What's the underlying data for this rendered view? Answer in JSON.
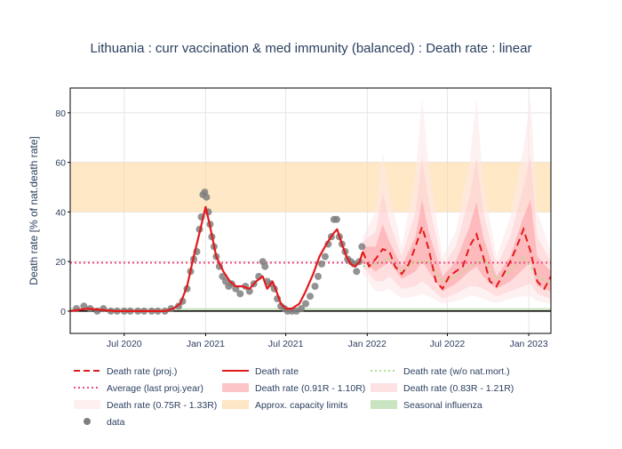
{
  "chart_data": {
    "type": "line",
    "title": "Lithuania : curr vaccination & med immunity (balanced) : Death rate : linear",
    "ylabel": "Death rate [% of nat.death rate]",
    "xlabel": "",
    "xlim": [
      "2020-03-01",
      "2023-02-20"
    ],
    "ylim": [
      -9,
      90
    ],
    "x_ticks": [
      {
        "date": "2020-07-01",
        "label": "Jul 2020"
      },
      {
        "date": "2021-01-01",
        "label": "Jan 2021"
      },
      {
        "date": "2021-07-01",
        "label": "Jul 2021"
      },
      {
        "date": "2022-01-01",
        "label": "Jan 2022"
      },
      {
        "date": "2022-07-01",
        "label": "Jul 2022"
      },
      {
        "date": "2023-01-01",
        "label": "Jan 2023"
      }
    ],
    "y_ticks": [
      0,
      20,
      40,
      60,
      80
    ],
    "grid": true,
    "legend_position": "bottom",
    "capacity_band": [
      40,
      60
    ],
    "average_last_proj_year": 19.5,
    "seasonal_influenza": 0.5,
    "colors": {
      "proj": "#e31a1c",
      "death": "#e31a1c",
      "womort": "#b2df8a",
      "average": "#f1497c",
      "band_inner": "#fc9fa2",
      "band_mid": "#fdcdd0",
      "band_outer": "#fee8ea",
      "capacity": "#fdd9a0",
      "influenza": "#b6d9a9",
      "data": "#7f7f7f",
      "black_line": "#000000"
    },
    "series": [
      {
        "name": "Death rate",
        "dates": [
          "2020-03-01",
          "2020-04-10",
          "2020-05-10",
          "2020-06-10",
          "2020-07-10",
          "2020-08-10",
          "2020-09-10",
          "2020-10-01",
          "2020-10-20",
          "2020-11-05",
          "2020-11-20",
          "2020-12-05",
          "2020-12-20",
          "2021-01-01",
          "2021-01-10",
          "2021-01-25",
          "2021-02-10",
          "2021-02-25",
          "2021-03-10",
          "2021-03-25",
          "2021-04-10",
          "2021-04-25",
          "2021-05-10",
          "2021-05-20",
          "2021-06-01",
          "2021-06-10",
          "2021-06-20",
          "2021-07-01",
          "2021-07-15",
          "2021-08-01",
          "2021-08-15",
          "2021-09-01",
          "2021-09-15",
          "2021-10-01",
          "2021-10-15",
          "2021-10-25",
          "2021-11-05",
          "2021-11-15",
          "2021-11-25",
          "2021-12-05",
          "2021-12-15",
          "2021-12-22"
        ],
        "values": [
          0,
          1,
          0.5,
          0,
          0,
          0,
          0,
          0,
          1,
          3,
          10,
          22,
          33,
          42,
          35,
          22,
          16,
          12,
          10,
          10,
          9,
          12,
          14,
          9,
          12,
          8,
          3,
          1,
          1,
          3,
          8,
          15,
          22,
          27,
          31,
          33,
          27,
          22,
          19,
          18,
          20,
          24
        ]
      },
      {
        "name": "Death rate (proj.)",
        "dates": [
          "2021-12-22",
          "2022-01-05",
          "2022-01-20",
          "2022-02-05",
          "2022-02-20",
          "2022-03-05",
          "2022-03-20",
          "2022-04-05",
          "2022-04-20",
          "2022-05-05",
          "2022-05-20",
          "2022-06-05",
          "2022-06-20",
          "2022-07-05",
          "2022-07-20",
          "2022-08-05",
          "2022-08-20",
          "2022-09-05",
          "2022-09-20",
          "2022-10-05",
          "2022-10-20",
          "2022-11-05",
          "2022-11-20",
          "2022-12-05",
          "2022-12-20",
          "2023-01-05",
          "2023-01-20",
          "2023-02-05",
          "2023-02-20"
        ],
        "values": [
          24,
          18,
          21,
          25,
          24,
          18,
          15,
          19,
          26,
          34,
          25,
          12,
          9,
          14,
          16,
          18,
          26,
          31,
          22,
          12,
          10,
          15,
          20,
          26,
          33,
          24,
          12,
          9,
          14
        ]
      },
      {
        "name": "Death rate (w/o nat.mort.)",
        "dates": [
          "2021-12-22",
          "2022-01-20",
          "2022-02-20",
          "2022-03-20",
          "2022-04-20",
          "2022-05-20",
          "2022-06-20",
          "2022-07-20",
          "2022-08-20",
          "2022-09-20",
          "2022-10-20",
          "2022-11-20",
          "2022-12-20",
          "2023-01-20",
          "2023-02-20"
        ],
        "values": [
          18,
          19,
          21,
          16,
          20,
          20,
          12,
          14,
          18,
          21,
          13,
          16,
          22,
          14,
          11
        ]
      },
      {
        "name": "Average (last proj.year)",
        "dates": [
          "2020-03-01",
          "2023-02-20"
        ],
        "values": [
          19.5,
          19.5
        ]
      }
    ],
    "bands": [
      {
        "name": "Death rate (0.91R - 1.10R)",
        "dates": [
          "2021-12-22",
          "2022-01-20",
          "2022-02-05",
          "2022-02-20",
          "2022-03-20",
          "2022-04-20",
          "2022-05-05",
          "2022-05-20",
          "2022-06-20",
          "2022-07-20",
          "2022-08-20",
          "2022-09-05",
          "2022-09-20",
          "2022-10-20",
          "2022-11-20",
          "2022-12-20",
          "2023-01-05",
          "2023-01-20",
          "2023-02-20"
        ],
        "lower": [
          20,
          16,
          18,
          20,
          13,
          16,
          20,
          16,
          8,
          11,
          16,
          18,
          14,
          9,
          12,
          17,
          20,
          10,
          8
        ],
        "upper": [
          26,
          26,
          35,
          28,
          18,
          30,
          45,
          32,
          14,
          20,
          34,
          44,
          30,
          14,
          22,
          38,
          45,
          22,
          16
        ]
      },
      {
        "name": "Death rate (0.83R - 1.21R)",
        "dates": [
          "2021-12-22",
          "2022-01-20",
          "2022-02-05",
          "2022-02-20",
          "2022-03-20",
          "2022-04-20",
          "2022-05-05",
          "2022-05-20",
          "2022-06-20",
          "2022-07-20",
          "2022-08-20",
          "2022-09-05",
          "2022-09-20",
          "2022-10-20",
          "2022-11-20",
          "2022-12-20",
          "2023-01-05",
          "2023-01-20",
          "2023-02-20"
        ],
        "lower": [
          18,
          12,
          12,
          14,
          9,
          10,
          12,
          10,
          5,
          7,
          10,
          10,
          9,
          6,
          8,
          10,
          11,
          7,
          5
        ],
        "upper": [
          28,
          32,
          48,
          36,
          22,
          40,
          62,
          44,
          18,
          26,
          46,
          62,
          40,
          18,
          30,
          50,
          63,
          30,
          20
        ]
      },
      {
        "name": "Death rate (0.75R - 1.33R)",
        "dates": [
          "2021-12-22",
          "2022-01-20",
          "2022-02-05",
          "2022-02-20",
          "2022-03-20",
          "2022-04-20",
          "2022-05-05",
          "2022-05-20",
          "2022-06-20",
          "2022-07-20",
          "2022-08-20",
          "2022-09-05",
          "2022-09-20",
          "2022-10-20",
          "2022-11-20",
          "2022-12-20",
          "2023-01-05",
          "2023-01-20",
          "2023-02-20"
        ],
        "lower": [
          15,
          8,
          8,
          9,
          5,
          6,
          7,
          6,
          3,
          4,
          6,
          6,
          5,
          3,
          5,
          6,
          6,
          4,
          3
        ],
        "upper": [
          30,
          40,
          64,
          48,
          26,
          55,
          86,
          58,
          22,
          32,
          60,
          86,
          52,
          22,
          38,
          66,
          86,
          40,
          24
        ]
      }
    ],
    "data_points": {
      "name": "data",
      "dates": [
        "2020-03-15",
        "2020-04-01",
        "2020-04-15",
        "2020-05-01",
        "2020-05-15",
        "2020-06-01",
        "2020-06-15",
        "2020-07-01",
        "2020-07-15",
        "2020-08-01",
        "2020-08-15",
        "2020-09-01",
        "2020-09-15",
        "2020-10-01",
        "2020-10-15",
        "2020-11-01",
        "2020-11-10",
        "2020-11-20",
        "2020-11-28",
        "2020-12-05",
        "2020-12-12",
        "2020-12-18",
        "2020-12-22",
        "2020-12-26",
        "2020-12-30",
        "2021-01-03",
        "2021-01-07",
        "2021-01-11",
        "2021-01-15",
        "2021-01-20",
        "2021-01-25",
        "2021-02-01",
        "2021-02-08",
        "2021-02-15",
        "2021-02-22",
        "2021-03-01",
        "2021-03-10",
        "2021-03-20",
        "2021-04-01",
        "2021-04-10",
        "2021-04-20",
        "2021-05-01",
        "2021-05-10",
        "2021-05-15",
        "2021-05-20",
        "2021-05-28",
        "2021-06-05",
        "2021-06-12",
        "2021-06-20",
        "2021-06-28",
        "2021-07-05",
        "2021-07-15",
        "2021-07-25",
        "2021-08-05",
        "2021-08-15",
        "2021-08-25",
        "2021-09-05",
        "2021-09-12",
        "2021-09-20",
        "2021-09-28",
        "2021-10-05",
        "2021-10-12",
        "2021-10-18",
        "2021-10-24",
        "2021-10-30",
        "2021-11-05",
        "2021-11-12",
        "2021-11-18",
        "2021-11-25",
        "2021-12-02",
        "2021-12-08",
        "2021-12-14",
        "2021-12-20"
      ],
      "values": [
        1,
        2,
        1,
        0,
        1,
        0,
        0,
        0,
        0,
        0,
        0,
        0,
        0,
        0,
        1,
        2,
        4,
        9,
        16,
        21,
        24,
        33,
        38,
        47,
        48,
        46,
        40,
        35,
        30,
        26,
        22,
        18,
        14,
        12,
        10,
        11,
        9,
        7,
        10,
        8,
        11,
        14,
        20,
        18,
        12,
        11,
        9,
        5,
        2,
        1,
        0,
        0,
        0,
        1,
        3,
        6,
        10,
        14,
        19,
        22,
        27,
        30,
        37,
        37,
        30,
        27,
        24,
        21,
        20,
        19,
        16,
        20,
        26
      ]
    }
  },
  "legend": [
    {
      "label": "Death rate (proj.)",
      "kind": "dash",
      "color": "#e31a1c"
    },
    {
      "label": "Death rate",
      "kind": "solid",
      "color": "#e31a1c"
    },
    {
      "label": "Death rate (w/o nat.mort.)",
      "kind": "dot",
      "color": "#b2df8a"
    },
    {
      "label": "Average (last proj.year)",
      "kind": "dot",
      "color": "#f1497c"
    },
    {
      "label": "Death rate (0.91R - 1.10R)",
      "kind": "fill",
      "color": "#fcc5c7"
    },
    {
      "label": "Death rate (0.83R - 1.21R)",
      "kind": "fill",
      "color": "#fde1e3"
    },
    {
      "label": "Death rate (0.75R - 1.33R)",
      "kind": "fill",
      "color": "#fef0f1"
    },
    {
      "label": "Approx. capacity limits",
      "kind": "fill",
      "color": "#fde6c4"
    },
    {
      "label": "Seasonal influenza",
      "kind": "fill",
      "color": "#c9e4c0"
    },
    {
      "label": "data",
      "kind": "marker",
      "color": "#7f7f7f"
    }
  ]
}
